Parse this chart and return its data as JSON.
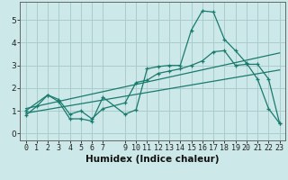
{
  "xlabel": "Humidex (Indice chaleur)",
  "x_ticks": [
    0,
    1,
    2,
    3,
    4,
    5,
    6,
    7,
    9,
    10,
    11,
    12,
    13,
    14,
    15,
    16,
    17,
    18,
    19,
    20,
    21,
    22,
    23
  ],
  "xlim": [
    -0.5,
    23.5
  ],
  "ylim": [
    -0.3,
    5.8
  ],
  "y_ticks": [
    0,
    1,
    2,
    3,
    4,
    5
  ],
  "background_color": "#cce8e8",
  "grid_color": "#aacccc",
  "line_color": "#1a7a6e",
  "series1_x": [
    0,
    1,
    2,
    3,
    4,
    5,
    6,
    7,
    9,
    10,
    11,
    12,
    13,
    14,
    15,
    16,
    17,
    18,
    19,
    20,
    21,
    22,
    23
  ],
  "series1_y": [
    0.8,
    1.2,
    1.7,
    1.4,
    0.65,
    0.65,
    0.55,
    1.6,
    0.85,
    1.05,
    2.85,
    2.95,
    3.0,
    3.0,
    4.55,
    5.4,
    5.35,
    4.15,
    3.65,
    3.1,
    2.4,
    1.1,
    0.45
  ],
  "series2_x": [
    0,
    2,
    3,
    4,
    5,
    6,
    7,
    9,
    10,
    11,
    12,
    13,
    14,
    15,
    16,
    17,
    18,
    19,
    20,
    21,
    22,
    23
  ],
  "series2_y": [
    1.0,
    1.7,
    1.5,
    0.85,
    1.0,
    0.65,
    1.1,
    1.35,
    2.25,
    2.35,
    2.65,
    2.75,
    2.85,
    3.0,
    3.2,
    3.6,
    3.65,
    3.0,
    3.05,
    3.05,
    2.4,
    0.45
  ],
  "trend1_x": [
    0,
    23
  ],
  "trend1_y": [
    1.1,
    3.55
  ],
  "trend2_x": [
    0,
    23
  ],
  "trend2_y": [
    0.9,
    2.8
  ],
  "tick_fontsize": 6.0,
  "xlabel_fontsize": 7.5
}
